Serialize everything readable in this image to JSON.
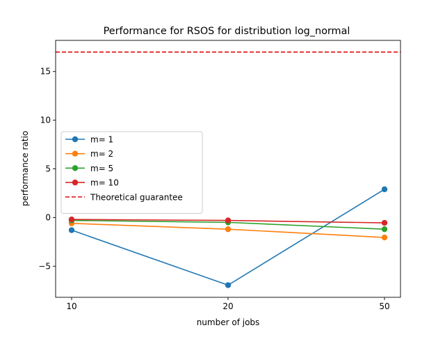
{
  "chart_data": {
    "type": "line",
    "title": "Performance for RSOS for distribution log_normal",
    "xlabel": "number of jobs",
    "ylabel": "performance ratio",
    "categories": [
      "10",
      "20",
      "50"
    ],
    "ylim": [
      -8.2,
      18.2
    ],
    "yticks": [
      -5,
      0,
      5,
      10,
      15
    ],
    "ytick_labels": [
      "−5",
      "0",
      "5",
      "10",
      "15"
    ],
    "grid": false,
    "legend_position": "center-left",
    "series": [
      {
        "name": "m= 1",
        "color": "#1f77b4",
        "marker": "circle",
        "values": [
          -1.3,
          -6.95,
          2.9
        ]
      },
      {
        "name": "m= 2",
        "color": "#ff7f0e",
        "marker": "circle",
        "values": [
          -0.6,
          -1.2,
          -2.05
        ]
      },
      {
        "name": "m= 5",
        "color": "#2ca02c",
        "marker": "circle",
        "values": [
          -0.3,
          -0.5,
          -1.2
        ]
      },
      {
        "name": "m= 10",
        "color": "#d62728",
        "marker": "circle",
        "values": [
          -0.2,
          -0.3,
          -0.55
        ]
      }
    ],
    "reference_lines": [
      {
        "name": "Theoretical guarantee",
        "color": "#e31a1c",
        "style": "dashed",
        "value": 17
      }
    ]
  }
}
